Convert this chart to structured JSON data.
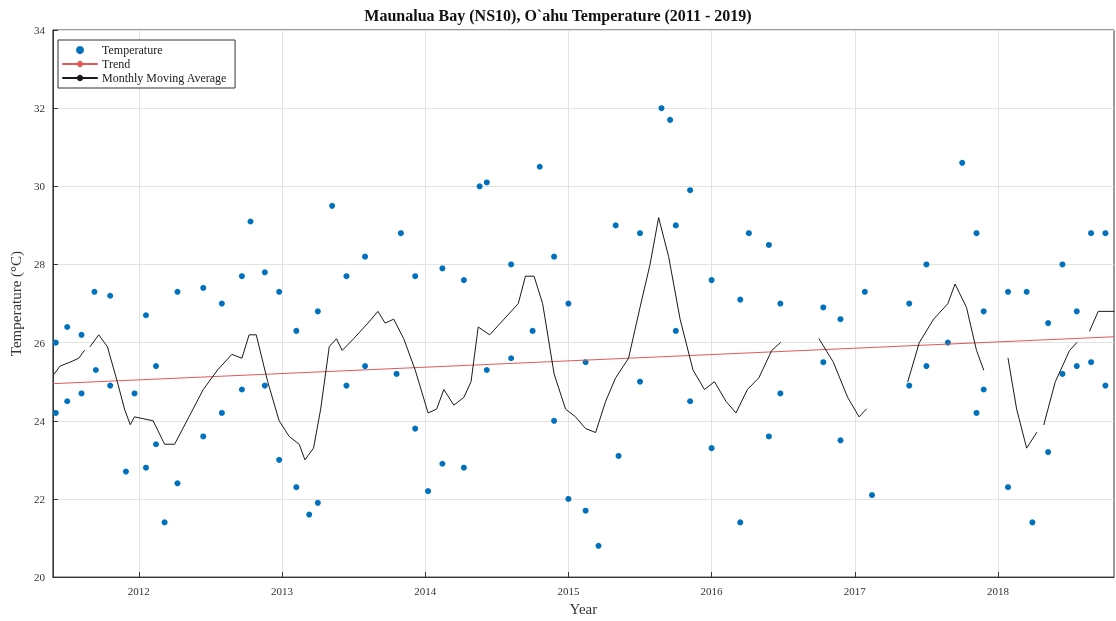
{
  "chart_data": {
    "type": "scatter",
    "title": "Maunalua Bay (NS10), O`ahu Temperature (2011 - 2019)",
    "xlabel": "Year",
    "ylabel": "Temperature (°C)",
    "xlim": [
      2011.4,
      2018.81
    ],
    "ylim": [
      20,
      34
    ],
    "xticks": [
      2012,
      2013,
      2014,
      2015,
      2016,
      2017,
      2018
    ],
    "yticks": [
      20,
      22,
      24,
      26,
      28,
      30,
      32,
      34
    ],
    "grid": true,
    "legend": "top left",
    "series": [
      {
        "name": "Temperature",
        "type": "scatter",
        "marker": "circle",
        "color": "#0072bd",
        "x": [
          2011.42,
          2011.42,
          2011.5,
          2011.5,
          2011.6,
          2011.6,
          2011.69,
          2011.7,
          2011.8,
          2011.8,
          2011.91,
          2011.97,
          2012.05,
          2012.05,
          2012.12,
          2012.12,
          2012.18,
          2012.27,
          2012.27,
          2012.45,
          2012.45,
          2012.58,
          2012.58,
          2012.72,
          2012.72,
          2012.78,
          2012.88,
          2012.88,
          2012.98,
          2012.98,
          2013.1,
          2013.1,
          2013.19,
          2013.25,
          2013.25,
          2013.35,
          2013.45,
          2013.45,
          2013.58,
          2013.58,
          2013.83,
          2013.8,
          2013.93,
          2013.93,
          2014.02,
          2014.12,
          2014.12,
          2014.27,
          2014.27,
          2014.38,
          2014.43,
          2014.43,
          2014.6,
          2014.6,
          2014.8,
          2014.75,
          2014.9,
          2014.9,
          2015.0,
          2015.0,
          2015.12,
          2015.12,
          2015.21,
          2015.33,
          2015.35,
          2015.5,
          2015.5,
          2015.65,
          2015.71,
          2015.75,
          2015.75,
          2015.85,
          2015.85,
          2016.0,
          2016.0,
          2016.2,
          2016.2,
          2016.26,
          2016.4,
          2016.4,
          2016.48,
          2016.48,
          2016.78,
          2016.78,
          2016.9,
          2016.9,
          2017.07,
          2017.12,
          2017.38,
          2017.38,
          2017.5,
          2017.5,
          2017.75,
          2017.65,
          2017.85,
          2017.85,
          2017.9,
          2017.9,
          2018.07,
          2018.07,
          2018.24,
          2018.2,
          2018.35,
          2018.35,
          2018.45,
          2018.45,
          2018.55,
          2018.55,
          2018.65,
          2018.65,
          2018.75,
          2018.75
        ],
        "values": [
          26.0,
          24.2,
          26.4,
          24.5,
          26.2,
          24.7,
          27.3,
          25.3,
          27.2,
          24.9,
          22.7,
          24.7,
          26.7,
          22.8,
          25.4,
          23.4,
          21.4,
          27.3,
          22.4,
          27.4,
          23.6,
          27.0,
          24.2,
          27.7,
          24.8,
          29.1,
          27.8,
          24.9,
          27.3,
          23.0,
          26.3,
          22.3,
          21.6,
          26.8,
          21.9,
          29.5,
          27.7,
          24.9,
          28.2,
          25.4,
          28.8,
          25.2,
          27.7,
          23.8,
          22.2,
          27.9,
          22.9,
          27.6,
          22.8,
          30.0,
          30.1,
          25.3,
          28.0,
          25.6,
          30.5,
          26.3,
          28.2,
          24.0,
          27.0,
          22.0,
          25.5,
          21.7,
          20.8,
          29.0,
          23.1,
          28.8,
          25.0,
          32.0,
          31.7,
          29.0,
          26.3,
          29.9,
          24.5,
          27.6,
          23.3,
          21.4,
          27.1,
          28.8,
          28.5,
          23.6,
          27.0,
          24.7,
          26.9,
          25.5,
          26.6,
          23.5,
          27.3,
          22.1,
          27.0,
          24.9,
          28.0,
          25.4,
          30.6,
          26.0,
          28.8,
          24.2,
          26.8,
          24.8,
          27.3,
          22.3,
          21.4,
          27.3,
          26.5,
          23.2,
          28.0,
          25.2,
          26.8,
          25.4,
          28.8,
          25.5,
          28.8,
          24.9
        ]
      },
      {
        "name": "Trend",
        "type": "line",
        "color": "#e05a5a",
        "x": [
          2011.4,
          2018.81
        ],
        "values": [
          24.95,
          26.15
        ]
      },
      {
        "name": "Monthly Moving Average",
        "type": "line",
        "color": "#1a1a1a",
        "x": [
          2011.41,
          2011.45,
          2011.52,
          2011.58,
          2011.62,
          2011.64,
          2011.66,
          2011.72,
          2011.78,
          2011.85,
          2011.9,
          2011.94,
          2011.97,
          2012.1,
          2012.18,
          2012.25,
          2012.35,
          2012.45,
          2012.55,
          2012.65,
          2012.72,
          2012.77,
          2012.82,
          2012.9,
          2012.98,
          2013.05,
          2013.12,
          2013.16,
          2013.22,
          2013.27,
          2013.33,
          2013.38,
          2013.42,
          2013.5,
          2013.6,
          2013.67,
          2013.72,
          2013.78,
          2013.85,
          2013.93,
          2014.02,
          2014.08,
          2014.13,
          2014.2,
          2014.27,
          2014.32,
          2014.37,
          2014.45,
          2014.55,
          2014.65,
          2014.7,
          2014.76,
          2014.82,
          2014.9,
          2014.98,
          2015.05,
          2015.12,
          2015.19,
          2015.26,
          2015.33,
          2015.42,
          2015.5,
          2015.57,
          2015.63,
          2015.7,
          2015.78,
          2015.87,
          2015.95,
          2016.02,
          2016.1,
          2016.17,
          2016.25,
          2016.33,
          2016.42,
          2016.48,
          2016.6,
          2016.75,
          2016.85,
          2016.95,
          2017.03,
          2017.08,
          2017.2,
          2017.37,
          2017.45,
          2017.55,
          2017.65,
          2017.7,
          2017.78,
          2017.85,
          2017.9,
          2018.0,
          2018.07,
          2018.13,
          2018.2,
          2018.27,
          2018.3,
          2018.32,
          2018.4,
          2018.5,
          2018.55,
          2018.6,
          2018.64,
          2018.7,
          2018.81
        ],
        "values": [
          25.2,
          25.4,
          25.5,
          25.6,
          25.8,
          null,
          25.9,
          26.2,
          25.9,
          25.0,
          24.3,
          23.9,
          24.1,
          24.0,
          23.4,
          23.4,
          24.1,
          24.8,
          25.3,
          25.7,
          25.6,
          26.2,
          26.2,
          25.0,
          24.0,
          23.6,
          23.4,
          23.0,
          23.3,
          24.3,
          25.9,
          26.1,
          25.8,
          26.1,
          26.5,
          26.8,
          26.5,
          26.6,
          26.1,
          25.3,
          24.2,
          24.3,
          24.8,
          24.4,
          24.6,
          25.0,
          26.4,
          26.2,
          26.6,
          27.0,
          27.7,
          27.7,
          27.0,
          25.2,
          24.3,
          24.1,
          23.8,
          23.7,
          24.5,
          25.1,
          25.6,
          26.9,
          28.0,
          29.2,
          28.2,
          26.6,
          25.3,
          24.8,
          25.0,
          24.5,
          24.2,
          24.8,
          25.1,
          25.8,
          26.0,
          null,
          26.1,
          25.5,
          24.6,
          24.1,
          24.3,
          null,
          25.0,
          26.0,
          26.6,
          27.0,
          27.5,
          26.9,
          25.8,
          25.3,
          null,
          25.6,
          24.3,
          23.3,
          23.7,
          null,
          23.9,
          25.0,
          25.8,
          26.0,
          null,
          26.3,
          26.8,
          26.8
        ]
      }
    ]
  }
}
